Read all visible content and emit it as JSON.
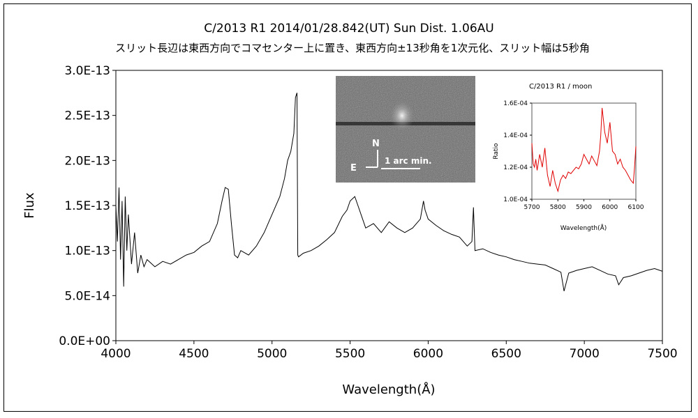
{
  "header": {
    "title": "C/2013 R1     2014/01/28.842(UT)     Sun Dist. 1.06AU",
    "subtitle": "スリット長辺は東西方向でコマセンター上に置き、東西方向±13秒角を1次元化、スリット幅は5秒角"
  },
  "colors": {
    "main_line": "#000000",
    "inset_line": "#e00000",
    "axis": "#000000"
  },
  "chart_data": [
    {
      "type": "line",
      "title": "",
      "xlabel": "Wavelength(Å)",
      "ylabel": "Flux",
      "xlim": [
        4000,
        7500
      ],
      "ylim": [
        0,
        3e-13
      ],
      "xticks": [
        4000,
        4500,
        5000,
        5500,
        6000,
        6500,
        7000,
        7500
      ],
      "yticks": [
        0,
        5e-14,
        1e-13,
        1.5e-13,
        2e-13,
        2.5e-13,
        3e-13
      ],
      "ytick_labels": [
        "0.0E+00",
        "5.0E-14",
        "1.0E-13",
        "1.5E-13",
        "2.0E-13",
        "2.5E-13",
        "3.0E-13"
      ],
      "grid": false,
      "series": [
        {
          "x": [
            4000,
            4010,
            4020,
            4030,
            4040,
            4050,
            4060,
            4070,
            4080,
            4100,
            4120,
            4140,
            4160,
            4180,
            4200,
            4250,
            4300,
            4350,
            4400,
            4450,
            4500,
            4550,
            4600,
            4650,
            4680,
            4700,
            4720,
            4740,
            4760,
            4780,
            4800,
            4850,
            4900,
            4950,
            5000,
            5050,
            5080,
            5100,
            5120,
            5140,
            5150,
            5160,
            5165,
            5170,
            5200,
            5250,
            5300,
            5350,
            5400,
            5450,
            5480,
            5500,
            5530,
            5550,
            5580,
            5600,
            5650,
            5700,
            5750,
            5800,
            5850,
            5900,
            5950,
            5970,
            5980,
            6000,
            6050,
            6100,
            6150,
            6200,
            6250,
            6280,
            6290,
            6300,
            6350,
            6400,
            6450,
            6500,
            6550,
            6600,
            6650,
            6700,
            6750,
            6800,
            6850,
            6870,
            6900,
            6950,
            7000,
            7050,
            7100,
            7150,
            7200,
            7220,
            7250,
            7300,
            7350,
            7400,
            7450,
            7500
          ],
          "y": [
            1.5e-13,
            1.1e-13,
            1.7e-13,
            9e-14,
            1.55e-13,
            6e-14,
            1.6e-13,
            1e-13,
            1.4e-13,
            8.5e-14,
            1.2e-13,
            7.5e-14,
            9.5e-14,
            8.2e-14,
            9e-14,
            8.2e-14,
            8.8e-14,
            8.5e-14,
            9e-14,
            9.5e-14,
            9.8e-14,
            1.05e-13,
            1.1e-13,
            1.3e-13,
            1.55e-13,
            1.7e-13,
            1.68e-13,
            1.3e-13,
            9.5e-14,
            9.2e-14,
            1e-13,
            9.5e-14,
            1.05e-13,
            1.2e-13,
            1.4e-13,
            1.6e-13,
            1.8e-13,
            2e-13,
            2.1e-13,
            2.3e-13,
            2.7e-13,
            2.75e-13,
            9.5e-14,
            9.3e-14,
            9.7e-14,
            1e-13,
            1.05e-13,
            1.12e-13,
            1.2e-13,
            1.38e-13,
            1.45e-13,
            1.55e-13,
            1.6e-13,
            1.5e-13,
            1.35e-13,
            1.25e-13,
            1.3e-13,
            1.2e-13,
            1.32e-13,
            1.25e-13,
            1.2e-13,
            1.25e-13,
            1.35e-13,
            1.55e-13,
            1.45e-13,
            1.35e-13,
            1.28e-13,
            1.22e-13,
            1.18e-13,
            1.15e-13,
            1.05e-13,
            1.1e-13,
            1.48e-13,
            1e-13,
            1.02e-13,
            9.8e-14,
            9.5e-14,
            9.3e-14,
            9e-14,
            8.8e-14,
            8.6e-14,
            8.5e-14,
            8.4e-14,
            8e-14,
            7.6e-14,
            5.5e-14,
            7.5e-14,
            7.8e-14,
            8e-14,
            8.2e-14,
            7.8e-14,
            7.4e-14,
            7.2e-14,
            6.2e-14,
            7e-14,
            7.2e-14,
            7.5e-14,
            7.8e-14,
            8e-14,
            7.7e-14
          ]
        }
      ]
    },
    {
      "type": "line",
      "title": "C/2013 R1 / moon",
      "xlabel": "Wavelength(Å)",
      "ylabel": "Ratio",
      "xlim": [
        5700,
        6100
      ],
      "ylim": [
        0.0001,
        0.00016
      ],
      "xticks": [
        5700,
        5800,
        5900,
        6000,
        6100
      ],
      "yticks": [
        0.0001,
        0.00012,
        0.00014,
        0.00016
      ],
      "ytick_labels": [
        "1.0E-04",
        "1.2E-04",
        "1.4E-04",
        "1.6E-04"
      ],
      "grid": false,
      "series": [
        {
          "x": [
            5700,
            5705,
            5710,
            5715,
            5720,
            5730,
            5740,
            5750,
            5760,
            5770,
            5780,
            5790,
            5800,
            5810,
            5820,
            5830,
            5840,
            5850,
            5860,
            5870,
            5880,
            5890,
            5900,
            5910,
            5920,
            5930,
            5940,
            5950,
            5960,
            5965,
            5970,
            5975,
            5980,
            5990,
            6000,
            6010,
            6020,
            6030,
            6040,
            6050,
            6060,
            6070,
            6080,
            6090,
            6095,
            6100
          ],
          "y": [
            0.000135,
            0.000122,
            0.00012,
            0.000125,
            0.000118,
            0.000128,
            0.00012,
            0.000132,
            0.000115,
            0.000108,
            0.000118,
            0.00011,
            0.000105,
            0.000112,
            0.000115,
            0.000113,
            0.000117,
            0.000116,
            0.000118,
            0.00012,
            0.000119,
            0.000122,
            0.000128,
            0.000125,
            0.000122,
            0.000127,
            0.000124,
            0.000121,
            0.00013,
            0.00014,
            0.000157,
            0.00015,
            0.000142,
            0.000135,
            0.000148,
            0.00013,
            0.000128,
            0.000122,
            0.000125,
            0.00012,
            0.000118,
            0.000115,
            0.000112,
            0.00011,
            0.00012,
            0.000133
          ]
        }
      ]
    }
  ],
  "image_inset": {
    "north_label": "N",
    "east_label": "E",
    "scale_label": "1 arc min."
  }
}
